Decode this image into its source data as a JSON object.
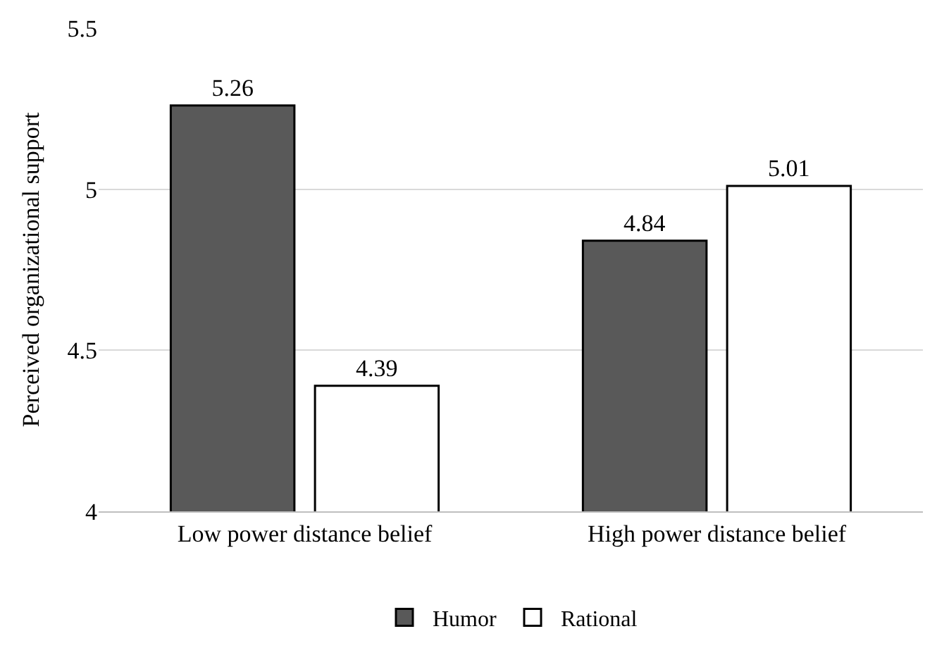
{
  "chart_data": {
    "type": "bar",
    "ylabel": "Perceived organizational support",
    "categories": [
      "Low power distance belief",
      "High power distance belief"
    ],
    "series": [
      {
        "name": "Humor",
        "color": "#595959",
        "values": [
          5.26,
          4.84
        ]
      },
      {
        "name": "Rational",
        "color": "#ffffff",
        "values": [
          4.39,
          5.01
        ]
      }
    ],
    "ylim": [
      4,
      5.5
    ],
    "yticks": [
      4,
      4.5,
      5,
      5.5
    ],
    "grid": "y",
    "legend": "bottom",
    "data_labels": true
  }
}
